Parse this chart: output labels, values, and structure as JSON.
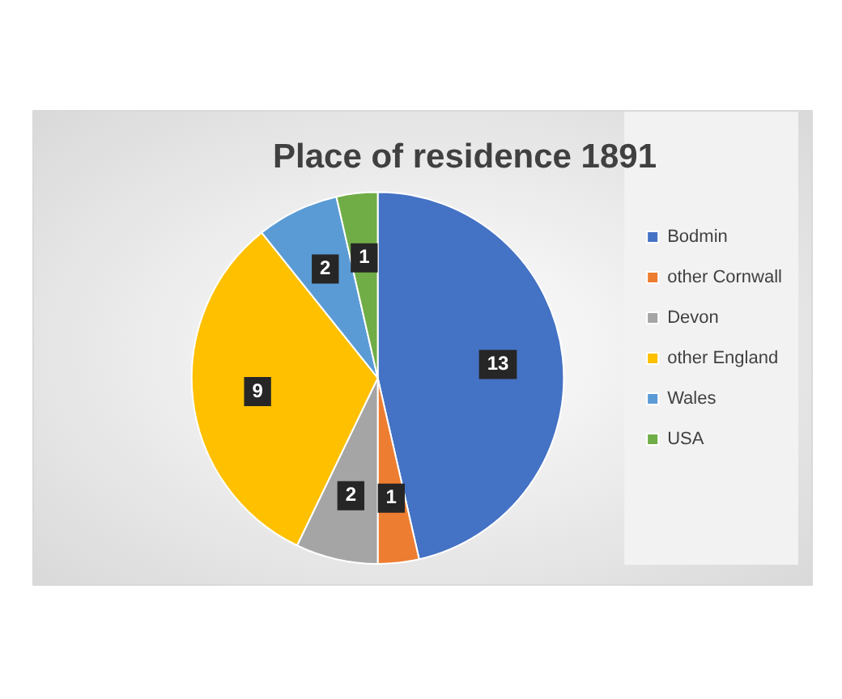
{
  "chart_data": {
    "type": "pie",
    "title": "Place of residence 1891",
    "categories": [
      "Bodmin",
      "other Cornwall",
      "Devon",
      "other England",
      "Wales",
      "USA"
    ],
    "values": [
      13,
      1,
      2,
      9,
      2,
      1
    ],
    "colors": [
      "#4472c4",
      "#ed7d31",
      "#a5a5a5",
      "#ffc000",
      "#5b9bd5",
      "#70ad47"
    ],
    "data_labels": true,
    "legend": "right"
  }
}
